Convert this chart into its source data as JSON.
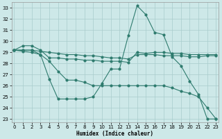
{
  "xlabel": "Humidex (Indice chaleur)",
  "bg_color": "#cde8e8",
  "grid_color": "#a8cccc",
  "line_color": "#2e7b6e",
  "xlim": [
    -0.3,
    23.3
  ],
  "ylim": [
    22.7,
    33.5
  ],
  "yticks": [
    23,
    24,
    25,
    26,
    27,
    28,
    29,
    30,
    31,
    32,
    33
  ],
  "xticks": [
    0,
    1,
    2,
    3,
    4,
    5,
    6,
    7,
    8,
    9,
    10,
    11,
    12,
    13,
    14,
    15,
    16,
    17,
    18,
    19,
    20,
    21,
    22,
    23
  ],
  "line1_x": [
    0,
    1,
    2,
    3,
    4,
    5,
    6,
    7,
    8,
    9,
    10,
    11,
    12,
    13,
    14,
    15,
    16,
    17,
    18,
    19,
    20,
    21,
    22,
    23
  ],
  "line1_y": [
    29.2,
    29.6,
    29.6,
    29.2,
    28.5,
    28.5,
    28.4,
    28.4,
    28.3,
    28.3,
    28.2,
    28.2,
    28.2,
    28.1,
    29.0,
    28.9,
    29.0,
    29.0,
    28.9,
    28.9,
    28.8,
    28.8,
    28.8,
    28.8
  ],
  "line2_x": [
    0,
    1,
    2,
    3,
    4,
    5,
    6,
    7,
    8,
    9,
    10,
    11,
    12,
    13,
    14,
    15,
    16,
    17,
    18,
    19,
    20,
    21,
    22,
    23
  ],
  "line2_y": [
    29.2,
    29.2,
    29.2,
    29.1,
    29.0,
    28.9,
    28.8,
    28.8,
    28.7,
    28.7,
    28.6,
    28.5,
    28.5,
    28.4,
    28.8,
    28.8,
    28.8,
    28.7,
    28.7,
    28.7,
    28.6,
    28.6,
    28.7,
    28.7
  ],
  "line3_x": [
    0,
    1,
    2,
    3,
    4,
    5,
    6,
    7,
    8,
    9,
    10,
    11,
    12,
    13,
    14,
    15,
    16,
    17,
    18,
    19,
    20,
    21,
    22,
    23
  ],
  "line3_y": [
    29.2,
    29.2,
    29.2,
    28.8,
    26.6,
    24.8,
    24.8,
    24.8,
    24.8,
    25.0,
    26.2,
    27.5,
    27.5,
    30.5,
    33.2,
    32.4,
    30.8,
    30.6,
    28.6,
    27.8,
    26.4,
    25.2,
    23.0,
    23.0
  ],
  "line4_x": [
    0,
    1,
    2,
    3,
    4,
    5,
    6,
    7,
    8,
    9,
    10,
    11,
    12,
    13,
    14,
    15,
    16,
    17,
    18,
    19,
    20,
    21,
    22,
    23
  ],
  "line4_y": [
    29.2,
    29.1,
    29.0,
    28.8,
    28.2,
    27.3,
    26.5,
    26.5,
    26.3,
    26.0,
    26.0,
    26.0,
    26.0,
    26.0,
    26.0,
    26.0,
    26.0,
    26.0,
    25.8,
    25.5,
    25.3,
    25.0,
    24.0,
    23.0
  ]
}
